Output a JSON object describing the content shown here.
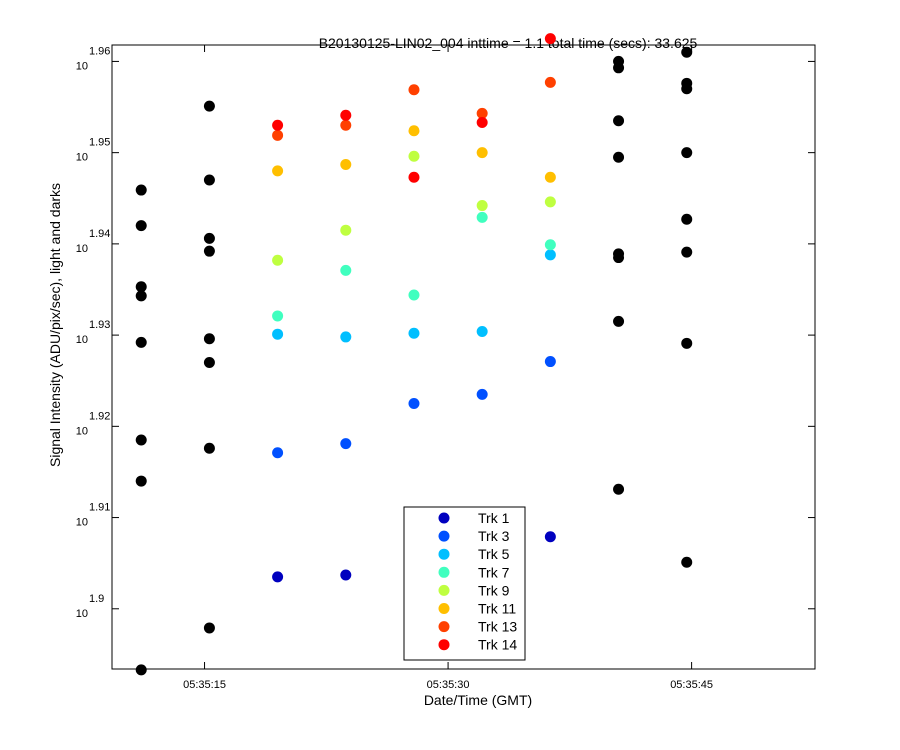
{
  "chart_data": {
    "type": "scatter",
    "title": "B20130125-LIN02_004 inttime = 1.1 total time (secs): 33.625",
    "xlabel": "Date/Time (GMT)",
    "ylabel": "Signal Intensity (ADU/pix/sec), light and darks",
    "y_scale": "log",
    "xlim": [
      "05:35:09.3",
      "05:35:52.6"
    ],
    "ylim_exponent": [
      1.8934,
      1.9618
    ],
    "x_ticks": [
      "05:35:15",
      "05:35:30",
      "05:35:45"
    ],
    "y_ticks": [
      {
        "base": "10",
        "exp": "1.9"
      },
      {
        "base": "10",
        "exp": "1.91"
      },
      {
        "base": "10",
        "exp": "1.92"
      },
      {
        "base": "10",
        "exp": "1.93"
      },
      {
        "base": "10",
        "exp": "1.94"
      },
      {
        "base": "10",
        "exp": "1.95"
      },
      {
        "base": "10",
        "exp": "1.96"
      }
    ],
    "grid": false,
    "legend_position": "bottom-center",
    "series": [
      {
        "name": "Trk 1",
        "color": "#0000bf",
        "points": [
          {
            "x": "05:35:19.5",
            "y_exp": 1.9035
          },
          {
            "x": "05:35:23.7",
            "y_exp": 1.9037
          },
          {
            "x": "05:35:36.3",
            "y_exp": 1.9079
          }
        ]
      },
      {
        "name": "Trk 3",
        "color": "#0050ff",
        "points": [
          {
            "x": "05:35:19.5",
            "y_exp": 1.9171
          },
          {
            "x": "05:35:23.7",
            "y_exp": 1.9181
          },
          {
            "x": "05:35:27.9",
            "y_exp": 1.9225
          },
          {
            "x": "05:35:32.1",
            "y_exp": 1.9235
          },
          {
            "x": "05:35:36.3",
            "y_exp": 1.9271
          }
        ]
      },
      {
        "name": "Trk 5",
        "color": "#00bfff",
        "points": [
          {
            "x": "05:35:19.5",
            "y_exp": 1.9301
          },
          {
            "x": "05:35:23.7",
            "y_exp": 1.9298
          },
          {
            "x": "05:35:27.9",
            "y_exp": 1.9302
          },
          {
            "x": "05:35:32.1",
            "y_exp": 1.9304
          },
          {
            "x": "05:35:36.3",
            "y_exp": 1.9388
          }
        ]
      },
      {
        "name": "Trk 7",
        "color": "#40ffbf",
        "points": [
          {
            "x": "05:35:19.5",
            "y_exp": 1.9321
          },
          {
            "x": "05:35:23.7",
            "y_exp": 1.9371
          },
          {
            "x": "05:35:27.9",
            "y_exp": 1.9344
          },
          {
            "x": "05:35:32.1",
            "y_exp": 1.9429
          },
          {
            "x": "05:35:36.3",
            "y_exp": 1.9399
          }
        ]
      },
      {
        "name": "Trk 9",
        "color": "#bfff40",
        "points": [
          {
            "x": "05:35:19.5",
            "y_exp": 1.9382
          },
          {
            "x": "05:35:23.7",
            "y_exp": 1.9415
          },
          {
            "x": "05:35:27.9",
            "y_exp": 1.9496
          },
          {
            "x": "05:35:32.1",
            "y_exp": 1.9442
          },
          {
            "x": "05:35:36.3",
            "y_exp": 1.9446
          }
        ]
      },
      {
        "name": "Trk 11",
        "color": "#ffbf00",
        "points": [
          {
            "x": "05:35:19.5",
            "y_exp": 1.948
          },
          {
            "x": "05:35:23.7",
            "y_exp": 1.9487
          },
          {
            "x": "05:35:27.9",
            "y_exp": 1.9524
          },
          {
            "x": "05:35:32.1",
            "y_exp": 1.95
          },
          {
            "x": "05:35:36.3",
            "y_exp": 1.9473
          }
        ]
      },
      {
        "name": "Trk 13",
        "color": "#ff4000",
        "points": [
          {
            "x": "05:35:19.5",
            "y_exp": 1.9519
          },
          {
            "x": "05:35:23.7",
            "y_exp": 1.953
          },
          {
            "x": "05:35:27.9",
            "y_exp": 1.9569
          },
          {
            "x": "05:35:32.1",
            "y_exp": 1.9543
          },
          {
            "x": "05:35:36.3",
            "y_exp": 1.9577
          }
        ]
      },
      {
        "name": "Trk 14",
        "color": "#ff0000",
        "points": [
          {
            "x": "05:35:19.5",
            "y_exp": 1.953
          },
          {
            "x": "05:35:23.7",
            "y_exp": 1.9541
          },
          {
            "x": "05:35:27.9",
            "y_exp": 1.9473
          },
          {
            "x": "05:35:32.1",
            "y_exp": 1.9533
          },
          {
            "x": "05:35:36.3",
            "y_exp": 1.9625
          }
        ]
      },
      {
        "color": "#000000",
        "points": [
          {
            "x": "05:35:11.1",
            "y_exp": 1.9459
          },
          {
            "x": "05:35:11.1",
            "y_exp": 1.942
          },
          {
            "x": "05:35:11.1",
            "y_exp": 1.9353
          },
          {
            "x": "05:35:11.1",
            "y_exp": 1.9343
          },
          {
            "x": "05:35:11.1",
            "y_exp": 1.9292
          },
          {
            "x": "05:35:11.1",
            "y_exp": 1.9185
          },
          {
            "x": "05:35:11.1",
            "y_exp": 1.914
          },
          {
            "x": "05:35:11.1",
            "y_exp": 1.8933
          },
          {
            "x": "05:35:15.3",
            "y_exp": 1.9551
          },
          {
            "x": "05:35:15.3",
            "y_exp": 1.947
          },
          {
            "x": "05:35:15.3",
            "y_exp": 1.9406
          },
          {
            "x": "05:35:15.3",
            "y_exp": 1.9392
          },
          {
            "x": "05:35:15.3",
            "y_exp": 1.9296
          },
          {
            "x": "05:35:15.3",
            "y_exp": 1.927
          },
          {
            "x": "05:35:15.3",
            "y_exp": 1.9176
          },
          {
            "x": "05:35:15.3",
            "y_exp": 1.8979
          },
          {
            "x": "05:35:40.5",
            "y_exp": 1.96
          },
          {
            "x": "05:35:40.5",
            "y_exp": 1.9593
          },
          {
            "x": "05:35:40.5",
            "y_exp": 1.9535
          },
          {
            "x": "05:35:40.5",
            "y_exp": 1.9495
          },
          {
            "x": "05:35:40.5",
            "y_exp": 1.9389
          },
          {
            "x": "05:35:40.5",
            "y_exp": 1.9385
          },
          {
            "x": "05:35:40.5",
            "y_exp": 1.9315
          },
          {
            "x": "05:35:40.5",
            "y_exp": 1.9131
          },
          {
            "x": "05:35:44.7",
            "y_exp": 1.961
          },
          {
            "x": "05:35:44.7",
            "y_exp": 1.9576
          },
          {
            "x": "05:35:44.7",
            "y_exp": 1.957
          },
          {
            "x": "05:35:44.7",
            "y_exp": 1.95
          },
          {
            "x": "05:35:44.7",
            "y_exp": 1.9427
          },
          {
            "x": "05:35:44.7",
            "y_exp": 1.9391
          },
          {
            "x": "05:35:44.7",
            "y_exp": 1.9291
          },
          {
            "x": "05:35:44.7",
            "y_exp": 1.9051
          }
        ]
      }
    ]
  }
}
